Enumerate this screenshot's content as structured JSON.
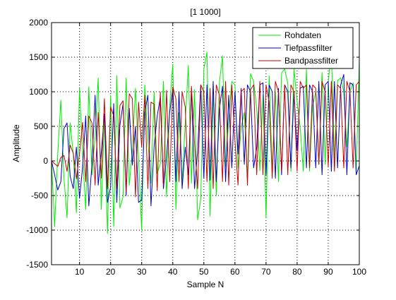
{
  "chart_data": {
    "type": "line",
    "title": "[1 1000]",
    "xlabel": "Sample N",
    "ylabel": "Amplitude",
    "xlim": [
      1,
      100
    ],
    "ylim": [
      -1500,
      2000
    ],
    "xticks": [
      10,
      20,
      30,
      40,
      50,
      60,
      70,
      80,
      90,
      100
    ],
    "yticks": [
      -1500,
      -1000,
      -500,
      0,
      500,
      1000,
      1500,
      2000
    ],
    "grid": true,
    "legend_position": "top-right",
    "series": [
      {
        "name": "Rohdaten",
        "color": "#00ee00",
        "values": [
          0,
          -950,
          100,
          880,
          -250,
          -820,
          550,
          100,
          -750,
          1050,
          100,
          -700,
          1070,
          -200,
          350,
          1200,
          -700,
          650,
          -1050,
          950,
          -950,
          1230,
          -680,
          -520,
          1200,
          -350,
          150,
          1050,
          20,
          -1000,
          1100,
          300,
          -320,
          1000,
          -180,
          -40,
          1150,
          -520,
          800,
          1400,
          -700,
          700,
          -300,
          550,
          1380,
          -320,
          1030,
          -850,
          -550,
          1330,
          1570,
          -800,
          1000,
          -500,
          1130,
          1520,
          -80,
          600,
          1150,
          1100,
          -100,
          480,
          700,
          -280,
          1260,
          1150,
          750,
          -140,
          950,
          -820,
          1230,
          -160,
          1000,
          -300,
          1270,
          1330,
          1120,
          -150,
          1330,
          850,
          480,
          -150,
          1320,
          -150,
          800,
          1000,
          -50,
          1280,
          -50,
          1140,
          1600,
          20,
          1160,
          1200,
          1000,
          200,
          1000,
          1130,
          -180,
          1450
        ]
      },
      {
        "name": "Tiefpassfilter",
        "color": "#0000cc",
        "values": [
          0,
          -200,
          -420,
          -300,
          470,
          550,
          -220,
          -400,
          200,
          -540,
          -100,
          650,
          -650,
          -50,
          950,
          -350,
          120,
          680,
          -600,
          -380,
          830,
          -600,
          520,
          820,
          -500,
          760,
          -60,
          500,
          -600,
          -560,
          700,
          950,
          -650,
          200,
          650,
          920,
          -400,
          50,
          700,
          1050,
          -300,
          1000,
          -400,
          200,
          -200,
          1050,
          -400,
          150,
          1100,
          -250,
          1100,
          -280,
          1150,
          -300,
          750,
          1080,
          -300,
          950,
          -100,
          1000,
          100,
          1050,
          -50,
          1100,
          1000,
          -100,
          200,
          1100,
          1130,
          -200,
          1100,
          1000,
          -250,
          1050,
          -200,
          1100,
          1000,
          -100,
          1000,
          150,
          1050,
          1080,
          -100,
          1100,
          1000,
          -100,
          1150,
          -200,
          1100,
          1150,
          -150,
          1150,
          -100,
          1100,
          1250,
          -200,
          1130,
          1100,
          -200,
          -70
        ]
      },
      {
        "name": "Bandpassfilter",
        "color": "#cc0000",
        "values": [
          0,
          -40,
          -80,
          50,
          80,
          -150,
          230,
          110,
          -260,
          100,
          560,
          -300,
          650,
          550,
          -350,
          700,
          -250,
          900,
          -400,
          780,
          650,
          -400,
          800,
          870,
          -450,
          970,
          900,
          -520,
          850,
          200,
          950,
          -400,
          850,
          820,
          -430,
          1000,
          -350,
          1020,
          -300,
          1070,
          900,
          -300,
          1000,
          780,
          -400,
          1080,
          250,
          -400,
          1100,
          1000,
          -300,
          1050,
          -400,
          1100,
          950,
          -300,
          1150,
          -350,
          1100,
          300,
          -350,
          1000,
          1050,
          -350,
          1030,
          1100,
          -200,
          1150,
          -200,
          1100,
          850,
          -250,
          1150,
          1000,
          -150,
          1100,
          -200,
          1100,
          1000,
          -150,
          1150,
          1050,
          1100,
          -100,
          1100,
          1050,
          -50,
          1150,
          1000,
          -80,
          1150,
          -150,
          1100,
          1050,
          -100,
          1150,
          1000,
          -100,
          1100,
          1150
        ]
      }
    ]
  }
}
